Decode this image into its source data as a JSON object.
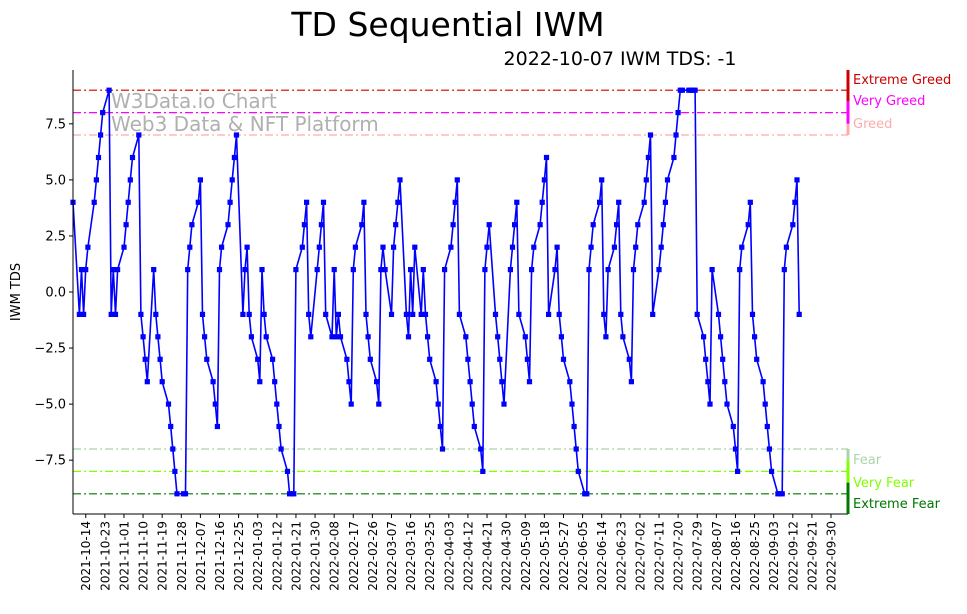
{
  "title": "TD Sequential IWM",
  "subtitle": "2022-10-07 IWM TDS: -1",
  "watermark": [
    "W3Data.io Chart",
    "Web3 Data & NFT Platform"
  ],
  "chart_data": {
    "type": "line",
    "ylabel": "IWM TDS",
    "ylim": [
      -9.9,
      9.9
    ],
    "xlim": [
      "2021-10-08",
      "2022-10-08"
    ],
    "yticks": [
      -7.5,
      -5.0,
      -2.5,
      0.0,
      2.5,
      5.0,
      7.5
    ],
    "ytick_labels": [
      "−7.5",
      "−5.0",
      "−2.5",
      "0.0",
      "2.5",
      "5.0",
      "7.5"
    ],
    "xticks": [
      "2021-10-14",
      "2021-10-23",
      "2021-11-01",
      "2021-11-10",
      "2021-11-19",
      "2021-11-28",
      "2021-12-07",
      "2021-12-16",
      "2021-12-25",
      "2022-01-03",
      "2022-01-12",
      "2022-01-21",
      "2022-01-30",
      "2022-02-08",
      "2022-02-17",
      "2022-02-26",
      "2022-03-07",
      "2022-03-16",
      "2022-03-25",
      "2022-04-03",
      "2022-04-12",
      "2022-04-21",
      "2022-04-30",
      "2022-05-09",
      "2022-05-18",
      "2022-05-27",
      "2022-06-05",
      "2022-06-14",
      "2022-06-23",
      "2022-07-02",
      "2022-07-11",
      "2022-07-20",
      "2022-07-29",
      "2022-08-07",
      "2022-08-16",
      "2022-08-25",
      "2022-09-03",
      "2022-09-12",
      "2022-09-21",
      "2022-09-30"
    ],
    "series_color": "#0000ff",
    "series": [
      {
        "start_date": "2021-10-08",
        "values": [
          4,
          -1,
          1,
          -1,
          1,
          2,
          4,
          5,
          6,
          7,
          8,
          9,
          -1,
          1,
          -1,
          1,
          2,
          3,
          4,
          5,
          6,
          7,
          -1,
          -2,
          -3,
          -4,
          1,
          -1,
          -2,
          -3,
          -4,
          -5,
          -6,
          -7,
          -8,
          -9,
          -9,
          -9,
          1,
          2,
          3,
          4,
          5,
          -1,
          -2,
          -3,
          -4,
          -5,
          -6,
          1,
          2,
          3,
          4,
          5,
          6,
          7,
          -1,
          1,
          2,
          -1,
          -2,
          -3,
          -4,
          1,
          -1,
          -2,
          -3,
          -4,
          -5,
          -6,
          -7,
          -8,
          -9,
          -9,
          -9,
          1,
          2,
          3,
          4,
          -1,
          -2,
          1,
          2,
          3,
          4,
          -1,
          -2,
          1,
          -2,
          -1,
          -2,
          -3,
          -4,
          -5,
          1,
          2,
          3,
          4,
          -1,
          -2,
          -3,
          -4,
          -5,
          1,
          2,
          1,
          -1,
          2,
          3,
          4,
          5,
          -1,
          -2,
          1,
          -1,
          2,
          -1,
          1,
          -1,
          -2,
          -3,
          -4,
          -5,
          -6,
          -7,
          1,
          2,
          3,
          4,
          5,
          -1,
          -2,
          -3,
          -4,
          -5,
          -6,
          -7,
          -8,
          1,
          2,
          3,
          -1,
          -2,
          -3,
          -4,
          -5,
          1,
          2,
          3,
          4,
          -1,
          -2,
          -3,
          -4,
          1,
          2,
          3,
          4,
          5,
          6,
          -1,
          1,
          2,
          -1,
          -2,
          -3,
          -4,
          -5,
          -6,
          -7,
          -8,
          -9,
          -9,
          1,
          2,
          3,
          4,
          5,
          -1,
          -2,
          1,
          2,
          3,
          4,
          -1,
          -2,
          -3,
          -4,
          1,
          2,
          3,
          4,
          5,
          6,
          7,
          -1,
          1,
          2,
          3,
          4,
          5,
          6,
          7,
          8,
          9,
          9,
          9,
          9,
          9,
          9,
          -1,
          -2,
          -3,
          -4,
          -5,
          1,
          -1,
          -2,
          -3,
          -4,
          -5,
          -6,
          -7,
          -8,
          1,
          2,
          3,
          4,
          -1,
          -2,
          -3,
          -4,
          -5,
          -6,
          -7,
          -8,
          -9,
          -9,
          -9,
          1,
          2,
          3,
          4,
          5,
          -1
        ]
      }
    ],
    "hlines": [
      {
        "value": 9,
        "color": "#cc0000",
        "label": "Extreme Greed",
        "band": [
          8.5,
          9.9
        ]
      },
      {
        "value": 8,
        "color": "#ff00ff",
        "label": "Very Greed",
        "band": [
          7.5,
          8.5
        ]
      },
      {
        "value": 7,
        "color": "#ffaaaa",
        "label": "Greed",
        "band": [
          7.0,
          7.5
        ]
      },
      {
        "value": -7,
        "color": "#aad4aa",
        "label": "Fear",
        "band": [
          -7.5,
          -7.0
        ]
      },
      {
        "value": -8,
        "color": "#80ff00",
        "label": "Very Fear",
        "band": [
          -8.5,
          -7.5
        ]
      },
      {
        "value": -9,
        "color": "#007700",
        "label": "Extreme Fear",
        "band": [
          -9.9,
          -8.5
        ]
      }
    ]
  }
}
